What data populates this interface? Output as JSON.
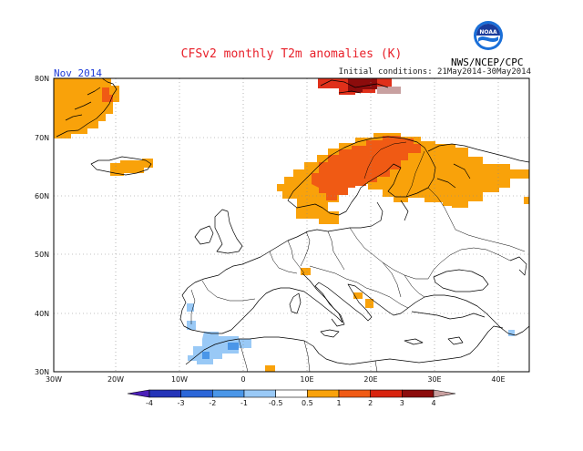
{
  "header": {
    "title": "CFSv2 monthly T2m anomalies (K)",
    "month": "Nov 2014",
    "initial_conditions": "Initial conditions: 21May2014-30May2014",
    "agency": "NWS/NCEP/CPC",
    "logo_text": "NOAA"
  },
  "axes": {
    "lon_labels": [
      "30W",
      "20W",
      "10W",
      "0",
      "10E",
      "20E",
      "30E",
      "40E"
    ],
    "lat_labels": [
      "80N",
      "70N",
      "60N",
      "50N",
      "40N",
      "30N"
    ]
  },
  "colorbar": {
    "labels": [
      "-4",
      "-3",
      "-2",
      "-1",
      "-0.5",
      "0.5",
      "1",
      "2",
      "3",
      "4"
    ],
    "colors": [
      "#4b1fb8",
      "#2434b8",
      "#2b66d8",
      "#4a96e8",
      "#99c9f6",
      "#ffffff",
      "#f9a20a",
      "#f05a14",
      "#d8230e",
      "#8c0c0c",
      "#c8a0a0"
    ]
  },
  "colors": {
    "orange": "#f9a20a",
    "red_orange": "#f05a14",
    "red": "#e0301a",
    "dark_red": "#8c0c0c",
    "light_brown": "#c8a0a0",
    "light_blue": "#99c9f6",
    "mid_blue": "#4a96e8"
  }
}
